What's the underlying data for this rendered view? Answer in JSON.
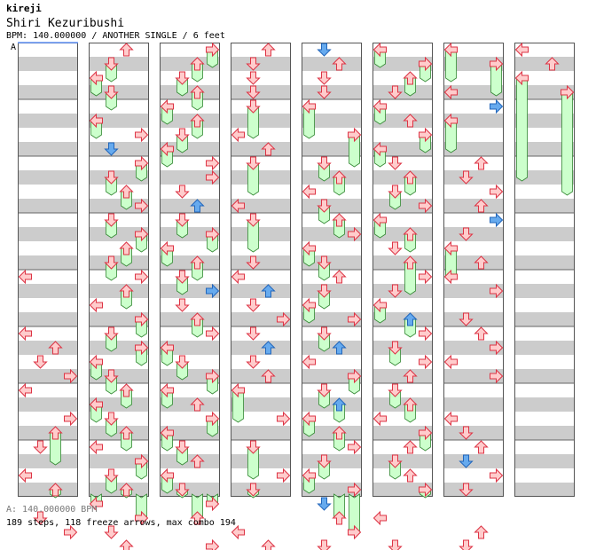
{
  "header": {
    "site_title": "kireji",
    "song_title": "Shiri Kezuribushi",
    "song_info": "BPM: 140.000000 / ANOTHER SINGLE / 6 feet",
    "bpm_marker": "A"
  },
  "footer": {
    "bpm_line": "A: 140.000000 BPM",
    "stats_line": "189 steps, 118 freeze arrows, max combo 194"
  },
  "colors": {
    "stripe": "#cccccc",
    "background": "#ffffff",
    "arrow_red_fill": "#ffcccc",
    "arrow_red_stroke": "#dd3344",
    "arrow_blue_fill": "#66aaee",
    "arrow_blue_stroke": "#2266bb",
    "freeze_fill": "#ccffcc",
    "freeze_stroke": "#338833",
    "marker_line": "#6699ff"
  },
  "chart_data": {
    "type": "step-chart",
    "bpm": 140.0,
    "difficulty": "ANOTHER",
    "mode": "SINGLE",
    "feet": 6,
    "columns": 8,
    "measures_per_column": 8,
    "lanes": [
      "left",
      "down",
      "up",
      "right"
    ],
    "notes": [
      {
        "c": 0,
        "b": 16,
        "l": 0
      },
      {
        "c": 0,
        "b": 20,
        "l": 0
      },
      {
        "c": 0,
        "b": 21,
        "l": 2
      },
      {
        "c": 0,
        "b": 22,
        "l": 1
      },
      {
        "c": 0,
        "b": 23,
        "l": 3
      },
      {
        "c": 0,
        "b": 24,
        "l": 0
      },
      {
        "c": 0,
        "b": 26,
        "l": 3
      },
      {
        "c": 0,
        "b": 27,
        "l": 2,
        "f": 2
      },
      {
        "c": 0,
        "b": 28,
        "l": 1
      },
      {
        "c": 0,
        "b": 30,
        "l": 0
      },
      {
        "c": 0,
        "b": 31,
        "l": 2,
        "f": 2
      },
      {
        "c": 0,
        "b": 33,
        "l": 1
      },
      {
        "c": 0,
        "b": 34,
        "l": 3
      },
      {
        "c": 1,
        "b": 0,
        "l": 2
      },
      {
        "c": 1,
        "b": 1,
        "l": 1,
        "f": 1
      },
      {
        "c": 1,
        "b": 2,
        "l": 0,
        "f": 1
      },
      {
        "c": 1,
        "b": 3,
        "l": 1,
        "f": 1
      },
      {
        "c": 1,
        "b": 5,
        "l": 0,
        "f": 1
      },
      {
        "c": 1,
        "b": 6,
        "l": 3
      },
      {
        "c": 1,
        "b": 7,
        "l": 1,
        "k": "blue"
      },
      {
        "c": 1,
        "b": 8,
        "l": 3,
        "f": 1
      },
      {
        "c": 1,
        "b": 9,
        "l": 1,
        "f": 1
      },
      {
        "c": 1,
        "b": 10,
        "l": 2,
        "f": 1
      },
      {
        "c": 1,
        "b": 11,
        "l": 3
      },
      {
        "c": 1,
        "b": 12,
        "l": 1,
        "f": 1
      },
      {
        "c": 1,
        "b": 13,
        "l": 3,
        "f": 1
      },
      {
        "c": 1,
        "b": 14,
        "l": 2,
        "f": 1
      },
      {
        "c": 1,
        "b": 15,
        "l": 1,
        "f": 1
      },
      {
        "c": 1,
        "b": 16,
        "l": 3
      },
      {
        "c": 1,
        "b": 17,
        "l": 2,
        "f": 1
      },
      {
        "c": 1,
        "b": 18,
        "l": 0
      },
      {
        "c": 1,
        "b": 19,
        "l": 3,
        "f": 1
      },
      {
        "c": 1,
        "b": 20,
        "l": 1,
        "f": 1
      },
      {
        "c": 1,
        "b": 21,
        "l": 3,
        "f": 1
      },
      {
        "c": 1,
        "b": 22,
        "l": 0,
        "f": 1
      },
      {
        "c": 1,
        "b": 23,
        "l": 1,
        "f": 1
      },
      {
        "c": 1,
        "b": 24,
        "l": 2,
        "f": 1
      },
      {
        "c": 1,
        "b": 25,
        "l": 0,
        "f": 1
      },
      {
        "c": 1,
        "b": 26,
        "l": 1,
        "f": 1
      },
      {
        "c": 1,
        "b": 27,
        "l": 2,
        "f": 1
      },
      {
        "c": 1,
        "b": 28,
        "l": 0
      },
      {
        "c": 1,
        "b": 29,
        "l": 3,
        "f": 1
      },
      {
        "c": 1,
        "b": 30,
        "l": 1,
        "f": 1
      },
      {
        "c": 1,
        "b": 31,
        "l": 2,
        "f": 1
      },
      {
        "c": 1,
        "b": 32,
        "l": 0,
        "f": 1
      },
      {
        "c": 1,
        "b": 33,
        "l": 3,
        "f": 1
      },
      {
        "c": 1,
        "b": 34,
        "l": 1
      },
      {
        "c": 1,
        "b": 35,
        "l": 2
      },
      {
        "c": 2,
        "b": 0,
        "l": 3,
        "f": 1
      },
      {
        "c": 2,
        "b": 1,
        "l": 2,
        "f": 1
      },
      {
        "c": 2,
        "b": 2,
        "l": 1,
        "f": 1
      },
      {
        "c": 2,
        "b": 3,
        "l": 2,
        "f": 1
      },
      {
        "c": 2,
        "b": 4,
        "l": 0,
        "f": 1
      },
      {
        "c": 2,
        "b": 5,
        "l": 2,
        "f": 1
      },
      {
        "c": 2,
        "b": 6,
        "l": 1,
        "f": 1
      },
      {
        "c": 2,
        "b": 7,
        "l": 0,
        "f": 1
      },
      {
        "c": 2,
        "b": 8,
        "l": 3
      },
      {
        "c": 2,
        "b": 9,
        "l": 3
      },
      {
        "c": 2,
        "b": 10,
        "l": 1
      },
      {
        "c": 2,
        "b": 11,
        "l": 2,
        "k": "blue"
      },
      {
        "c": 2,
        "b": 12,
        "l": 1,
        "f": 1
      },
      {
        "c": 2,
        "b": 13,
        "l": 3,
        "f": 1
      },
      {
        "c": 2,
        "b": 14,
        "l": 0,
        "f": 1
      },
      {
        "c": 2,
        "b": 15,
        "l": 2,
        "f": 1
      },
      {
        "c": 2,
        "b": 16,
        "l": 1,
        "f": 1
      },
      {
        "c": 2,
        "b": 17,
        "l": 3,
        "k": "blue"
      },
      {
        "c": 2,
        "b": 18,
        "l": 1
      },
      {
        "c": 2,
        "b": 19,
        "l": 2,
        "f": 1
      },
      {
        "c": 2,
        "b": 20,
        "l": 3
      },
      {
        "c": 2,
        "b": 21,
        "l": 0,
        "f": 1
      },
      {
        "c": 2,
        "b": 22,
        "l": 1,
        "f": 1
      },
      {
        "c": 2,
        "b": 23,
        "l": 3,
        "f": 1
      },
      {
        "c": 2,
        "b": 24,
        "l": 0,
        "f": 1
      },
      {
        "c": 2,
        "b": 25,
        "l": 2
      },
      {
        "c": 2,
        "b": 26,
        "l": 3,
        "f": 1
      },
      {
        "c": 2,
        "b": 27,
        "l": 0,
        "f": 1
      },
      {
        "c": 2,
        "b": 28,
        "l": 1,
        "f": 1
      },
      {
        "c": 2,
        "b": 29,
        "l": 2
      },
      {
        "c": 2,
        "b": 30,
        "l": 0,
        "f": 1
      },
      {
        "c": 2,
        "b": 31,
        "l": 1,
        "f": 1
      },
      {
        "c": 2,
        "b": 32,
        "l": 3,
        "f": 1
      },
      {
        "c": 2,
        "b": 33,
        "l": 2,
        "f": 1
      },
      {
        "c": 2,
        "b": 35,
        "l": 3
      },
      {
        "c": 3,
        "b": 0,
        "l": 2
      },
      {
        "c": 3,
        "b": 1,
        "l": 1
      },
      {
        "c": 3,
        "b": 2,
        "l": 1
      },
      {
        "c": 3,
        "b": 3,
        "l": 1
      },
      {
        "c": 3,
        "b": 4,
        "l": 1,
        "f": 2
      },
      {
        "c": 3,
        "b": 6,
        "l": 0
      },
      {
        "c": 3,
        "b": 7,
        "l": 2
      },
      {
        "c": 3,
        "b": 8,
        "l": 1,
        "f": 2
      },
      {
        "c": 3,
        "b": 11,
        "l": 0
      },
      {
        "c": 3,
        "b": 12,
        "l": 1,
        "f": 2
      },
      {
        "c": 3,
        "b": 15,
        "l": 1
      },
      {
        "c": 3,
        "b": 16,
        "l": 0
      },
      {
        "c": 3,
        "b": 17,
        "l": 2,
        "k": "blue"
      },
      {
        "c": 3,
        "b": 18,
        "l": 1
      },
      {
        "c": 3,
        "b": 19,
        "l": 3
      },
      {
        "c": 3,
        "b": 20,
        "l": 1
      },
      {
        "c": 3,
        "b": 21,
        "l": 2,
        "k": "blue"
      },
      {
        "c": 3,
        "b": 22,
        "l": 1
      },
      {
        "c": 3,
        "b": 23,
        "l": 2
      },
      {
        "c": 3,
        "b": 24,
        "l": 0,
        "f": 2
      },
      {
        "c": 3,
        "b": 26,
        "l": 3
      },
      {
        "c": 3,
        "b": 28,
        "l": 1,
        "f": 2
      },
      {
        "c": 3,
        "b": 30,
        "l": 3
      },
      {
        "c": 3,
        "b": 31,
        "l": 1,
        "f": 2
      },
      {
        "c": 3,
        "b": 34,
        "l": 0
      },
      {
        "c": 3,
        "b": 35,
        "l": 2
      },
      {
        "c": 4,
        "b": 0,
        "l": 1,
        "k": "blue"
      },
      {
        "c": 4,
        "b": 1,
        "l": 2
      },
      {
        "c": 4,
        "b": 2,
        "l": 1
      },
      {
        "c": 4,
        "b": 3,
        "l": 1
      },
      {
        "c": 4,
        "b": 4,
        "l": 0,
        "f": 2
      },
      {
        "c": 4,
        "b": 6,
        "l": 3,
        "f": 2
      },
      {
        "c": 4,
        "b": 8,
        "l": 1,
        "f": 1
      },
      {
        "c": 4,
        "b": 9,
        "l": 2,
        "f": 1
      },
      {
        "c": 4,
        "b": 10,
        "l": 0
      },
      {
        "c": 4,
        "b": 11,
        "l": 1,
        "f": 1
      },
      {
        "c": 4,
        "b": 12,
        "l": 2,
        "f": 1
      },
      {
        "c": 4,
        "b": 13,
        "l": 3
      },
      {
        "c": 4,
        "b": 14,
        "l": 0,
        "f": 1
      },
      {
        "c": 4,
        "b": 15,
        "l": 1,
        "f": 1
      },
      {
        "c": 4,
        "b": 16,
        "l": 2
      },
      {
        "c": 4,
        "b": 17,
        "l": 1,
        "f": 1
      },
      {
        "c": 4,
        "b": 18,
        "l": 0,
        "f": 1
      },
      {
        "c": 4,
        "b": 19,
        "l": 3
      },
      {
        "c": 4,
        "b": 20,
        "l": 1,
        "f": 1
      },
      {
        "c": 4,
        "b": 21,
        "l": 2,
        "k": "blue"
      },
      {
        "c": 4,
        "b": 22,
        "l": 0
      },
      {
        "c": 4,
        "b": 23,
        "l": 3,
        "f": 1
      },
      {
        "c": 4,
        "b": 24,
        "l": 1,
        "f": 1
      },
      {
        "c": 4,
        "b": 25,
        "l": 2,
        "k": "blue",
        "f": 1
      },
      {
        "c": 4,
        "b": 26,
        "l": 0,
        "f": 1
      },
      {
        "c": 4,
        "b": 27,
        "l": 2,
        "f": 1
      },
      {
        "c": 4,
        "b": 28,
        "l": 3
      },
      {
        "c": 4,
        "b": 29,
        "l": 1,
        "f": 1
      },
      {
        "c": 4,
        "b": 30,
        "l": 0,
        "f": 1
      },
      {
        "c": 4,
        "b": 31,
        "l": 3
      },
      {
        "c": 4,
        "b": 32,
        "l": 1,
        "k": "blue"
      },
      {
        "c": 4,
        "b": 33,
        "l": 2,
        "f": 1
      },
      {
        "c": 4,
        "b": 34,
        "l": 3,
        "f": 1
      },
      {
        "c": 4,
        "b": 35,
        "l": 1
      },
      {
        "c": 5,
        "b": 0,
        "l": 0,
        "f": 1
      },
      {
        "c": 5,
        "b": 1,
        "l": 3,
        "f": 1
      },
      {
        "c": 5,
        "b": 2,
        "l": 2,
        "f": 1
      },
      {
        "c": 5,
        "b": 3,
        "l": 1
      },
      {
        "c": 5,
        "b": 4,
        "l": 0,
        "f": 1
      },
      {
        "c": 5,
        "b": 5,
        "l": 2
      },
      {
        "c": 5,
        "b": 6,
        "l": 3,
        "f": 1
      },
      {
        "c": 5,
        "b": 7,
        "l": 0,
        "f": 1
      },
      {
        "c": 5,
        "b": 8,
        "l": 1
      },
      {
        "c": 5,
        "b": 9,
        "l": 2,
        "f": 1
      },
      {
        "c": 5,
        "b": 10,
        "l": 1,
        "f": 1
      },
      {
        "c": 5,
        "b": 11,
        "l": 3
      },
      {
        "c": 5,
        "b": 12,
        "l": 0,
        "f": 1
      },
      {
        "c": 5,
        "b": 13,
        "l": 2,
        "f": 1
      },
      {
        "c": 5,
        "b": 14,
        "l": 1
      },
      {
        "c": 5,
        "b": 15,
        "l": 2,
        "f": 2
      },
      {
        "c": 5,
        "b": 16,
        "l": 3
      },
      {
        "c": 5,
        "b": 17,
        "l": 1
      },
      {
        "c": 5,
        "b": 18,
        "l": 0,
        "f": 1
      },
      {
        "c": 5,
        "b": 19,
        "l": 2,
        "k": "blue",
        "f": 1
      },
      {
        "c": 5,
        "b": 20,
        "l": 3
      },
      {
        "c": 5,
        "b": 21,
        "l": 1,
        "f": 1
      },
      {
        "c": 5,
        "b": 22,
        "l": 3
      },
      {
        "c": 5,
        "b": 23,
        "l": 2
      },
      {
        "c": 5,
        "b": 24,
        "l": 1,
        "f": 1
      },
      {
        "c": 5,
        "b": 25,
        "l": 2,
        "f": 1
      },
      {
        "c": 5,
        "b": 26,
        "l": 0
      },
      {
        "c": 5,
        "b": 27,
        "l": 3,
        "f": 1
      },
      {
        "c": 5,
        "b": 28,
        "l": 2
      },
      {
        "c": 5,
        "b": 29,
        "l": 1,
        "f": 1
      },
      {
        "c": 5,
        "b": 30,
        "l": 2
      },
      {
        "c": 5,
        "b": 31,
        "l": 3,
        "f": 1
      },
      {
        "c": 5,
        "b": 33,
        "l": 0
      },
      {
        "c": 5,
        "b": 35,
        "l": 1
      },
      {
        "c": 6,
        "b": 0,
        "l": 0,
        "f": 2
      },
      {
        "c": 6,
        "b": 1,
        "l": 3,
        "f": 2
      },
      {
        "c": 6,
        "b": 3,
        "l": 0
      },
      {
        "c": 6,
        "b": 4,
        "l": 3,
        "k": "blue"
      },
      {
        "c": 6,
        "b": 5,
        "l": 0,
        "f": 2
      },
      {
        "c": 6,
        "b": 8,
        "l": 2
      },
      {
        "c": 6,
        "b": 9,
        "l": 1
      },
      {
        "c": 6,
        "b": 10,
        "l": 3
      },
      {
        "c": 6,
        "b": 11,
        "l": 2
      },
      {
        "c": 6,
        "b": 12,
        "l": 3,
        "k": "blue"
      },
      {
        "c": 6,
        "b": 13,
        "l": 1
      },
      {
        "c": 6,
        "b": 14,
        "l": 0,
        "f": 2
      },
      {
        "c": 6,
        "b": 15,
        "l": 2
      },
      {
        "c": 6,
        "b": 16,
        "l": 0
      },
      {
        "c": 6,
        "b": 17,
        "l": 3
      },
      {
        "c": 6,
        "b": 19,
        "l": 1
      },
      {
        "c": 6,
        "b": 20,
        "l": 2
      },
      {
        "c": 6,
        "b": 21,
        "l": 3
      },
      {
        "c": 6,
        "b": 22,
        "l": 0
      },
      {
        "c": 6,
        "b": 23,
        "l": 3
      },
      {
        "c": 6,
        "b": 26,
        "l": 0
      },
      {
        "c": 6,
        "b": 27,
        "l": 1
      },
      {
        "c": 6,
        "b": 28,
        "l": 2
      },
      {
        "c": 6,
        "b": 29,
        "l": 1,
        "k": "blue"
      },
      {
        "c": 6,
        "b": 30,
        "l": 3
      },
      {
        "c": 6,
        "b": 31,
        "l": 1
      },
      {
        "c": 6,
        "b": 34,
        "l": 2
      },
      {
        "c": 6,
        "b": 35,
        "l": 1
      },
      {
        "c": 7,
        "b": 0,
        "l": 0
      },
      {
        "c": 7,
        "b": 1,
        "l": 2
      },
      {
        "c": 7,
        "b": 2,
        "l": 0,
        "f": 7
      },
      {
        "c": 7,
        "b": 3,
        "l": 3,
        "f": 7
      }
    ]
  }
}
